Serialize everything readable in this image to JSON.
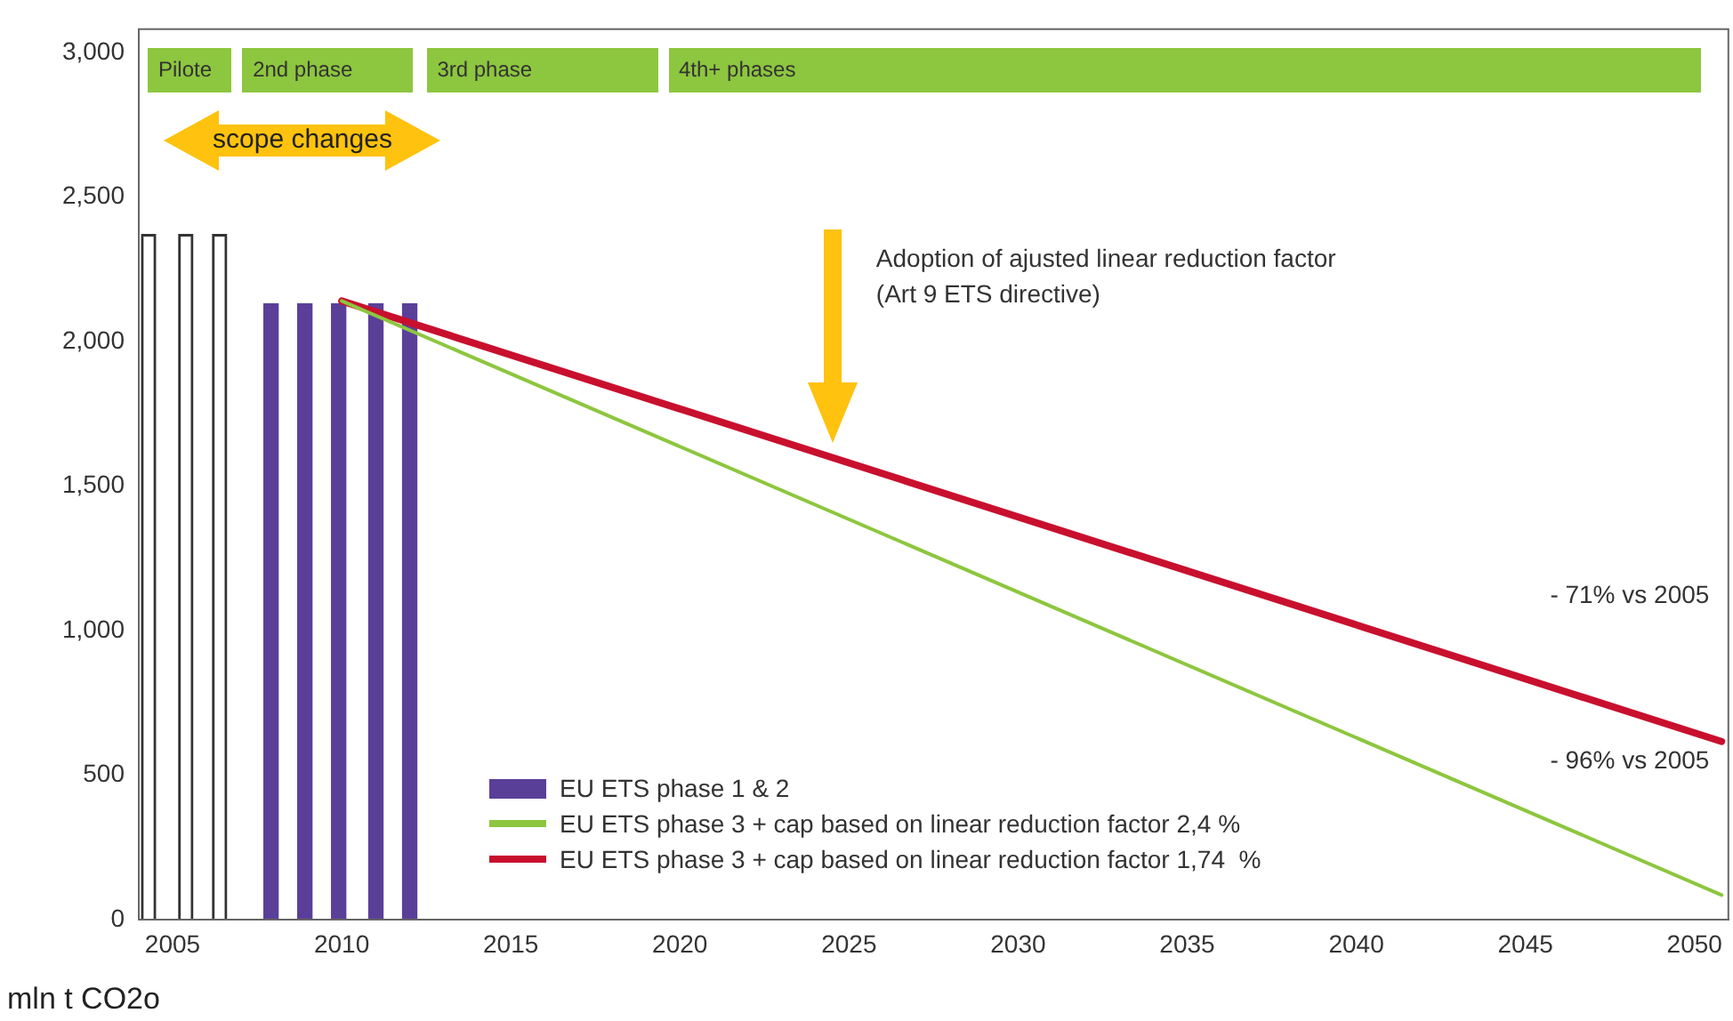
{
  "chart_data": {
    "type": "bar",
    "ylabel": "mln t CO2o",
    "xlim": [
      2004,
      2051
    ],
    "xticks": [
      2005,
      2010,
      2015,
      2020,
      2025,
      2030,
      2035,
      2040,
      2045,
      2050
    ],
    "ylim": [
      0,
      3080
    ],
    "yticks": [
      0,
      500,
      {
        "value": 1000,
        "label": "1,000"
      },
      {
        "value": 1500,
        "label": "1,500"
      },
      {
        "value": 2000,
        "label": "2,000"
      },
      {
        "value": 2500,
        "label": "2,500"
      },
      {
        "value": 3000,
        "label": "3,000"
      }
    ],
    "grid": false,
    "legend": "bottom",
    "marker": "none",
    "line_style": "solid",
    "series": [
      {
        "color": "#ffffff",
        "x": [
          2004.5,
          2005.6,
          2006.6
        ],
        "values": [
          2370,
          2370,
          2370
        ]
      },
      {
        "name": "EU ETS phase 1 & 2",
        "color": "#5a3f99",
        "x": [
          2007.7,
          2008.7,
          2009.7,
          2010.8,
          2011.8
        ],
        "values": [
          2130,
          2130,
          2130,
          2130,
          2130
        ]
      },
      {
        "type": "line",
        "name": "EU ETS phase 3 + cap based on linear reduction factor 2,4 %",
        "color": "#8dc63f",
        "x": [
          2010,
          2050.8
        ],
        "values": [
          2140,
          85
        ]
      },
      {
        "type": "line",
        "name": "EU ETS phase 3 + cap based on linear reduction factor 1,74  %",
        "color": "#c8102e",
        "x": [
          2010,
          2050.8
        ],
        "values": [
          2140,
          616
        ]
      }
    ],
    "annotations": [
      "Pilote",
      "2nd phase",
      "3rd phase",
      "4th+ phases",
      "scope changes",
      "Adoption of ajusted linear reduction factor\n(Art 9 ETS directive)",
      "- 71% vs 2005",
      "- 96% vs 2005"
    ]
  }
}
